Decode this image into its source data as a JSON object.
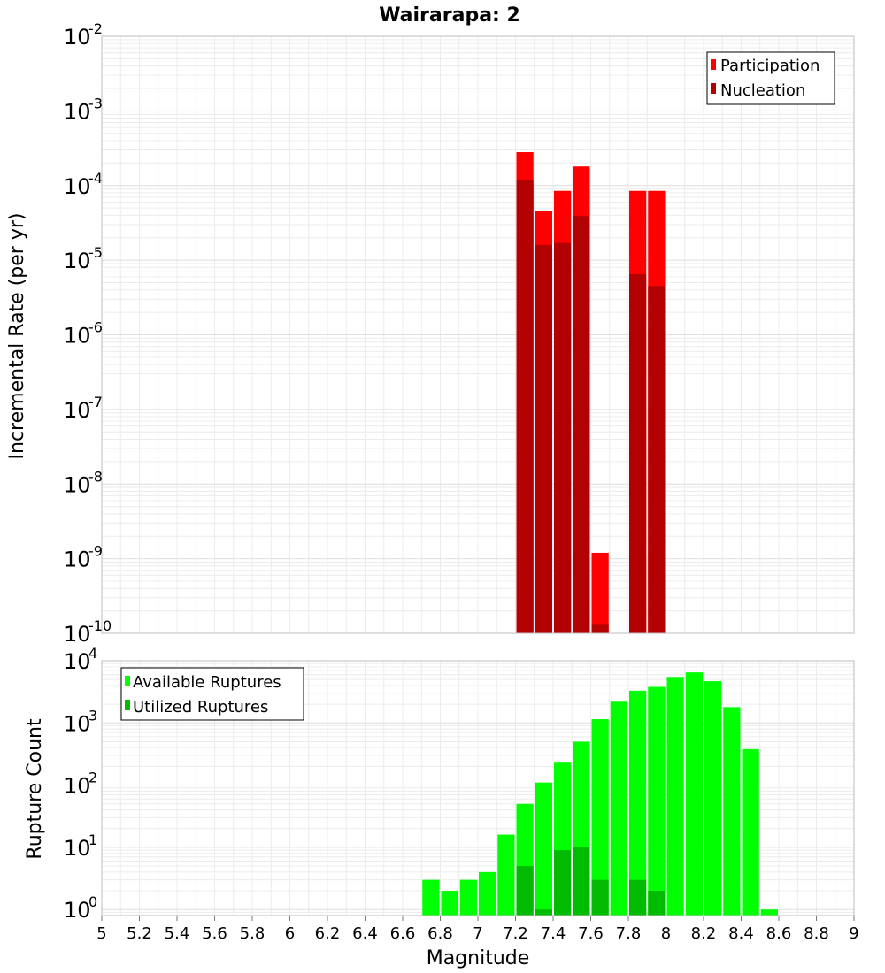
{
  "chart_data": [
    {
      "type": "bar",
      "title": "Wairarapa: 2",
      "xlabel": "Magnitude",
      "ylabel": "Incremental Rate (per yr)",
      "xlim": [
        5,
        9
      ],
      "ylim": [
        1e-10,
        0.01
      ],
      "yscale": "log",
      "bin_width": 0.1,
      "grid": true,
      "legend_position": "top-right",
      "series": [
        {
          "name": "Participation",
          "color": "#ff0000",
          "x": [
            7.25,
            7.35,
            7.45,
            7.55,
            7.65,
            7.85,
            7.95
          ],
          "values": [
            0.00028,
            4.5e-05,
            8.5e-05,
            0.00018,
            1.2e-09,
            8.5e-05,
            8.5e-05
          ]
        },
        {
          "name": "Nucleation",
          "color": "#b30000",
          "x": [
            7.25,
            7.35,
            7.45,
            7.55,
            7.65,
            7.85,
            7.95
          ],
          "values": [
            0.00012,
            1.6e-05,
            1.7e-05,
            3.9e-05,
            1.3e-10,
            6.5e-06,
            4.5e-06
          ]
        }
      ],
      "y_ticks": [
        {
          "base": "10",
          "exp": "-2",
          "value": 0.01
        },
        {
          "base": "10",
          "exp": "-3",
          "value": 0.001
        },
        {
          "base": "10",
          "exp": "-4",
          "value": 0.0001
        },
        {
          "base": "10",
          "exp": "-5",
          "value": 1e-05
        },
        {
          "base": "10",
          "exp": "-6",
          "value": 1e-06
        },
        {
          "base": "10",
          "exp": "-7",
          "value": 1e-07
        },
        {
          "base": "10",
          "exp": "-8",
          "value": 1e-08
        },
        {
          "base": "10",
          "exp": "-9",
          "value": 1e-09
        },
        {
          "base": "10",
          "exp": "-10",
          "value": 1e-10
        }
      ]
    },
    {
      "type": "bar",
      "title": "",
      "xlabel": "Magnitude",
      "ylabel": "Rupture Count",
      "xlim": [
        5,
        9
      ],
      "ylim": [
        0.8,
        10000.0
      ],
      "yscale": "log",
      "bin_width": 0.1,
      "grid": true,
      "legend_position": "top-left",
      "series": [
        {
          "name": "Available Ruptures",
          "color": "#00ff00",
          "x": [
            6.75,
            6.85,
            6.95,
            7.05,
            7.15,
            7.25,
            7.35,
            7.45,
            7.55,
            7.65,
            7.75,
            7.85,
            7.95,
            8.05,
            8.15,
            8.25,
            8.35,
            8.45,
            8.55
          ],
          "values": [
            3,
            2,
            3,
            4,
            16,
            50,
            110,
            230,
            500,
            1150,
            2200,
            3300,
            3800,
            5500,
            6500,
            4700,
            1800,
            380,
            1
          ]
        },
        {
          "name": "Utilized Ruptures",
          "color": "#00bb00",
          "x": [
            7.25,
            7.35,
            7.45,
            7.55,
            7.65,
            7.85,
            7.95
          ],
          "values": [
            5,
            1,
            9,
            10,
            3,
            3,
            2
          ]
        }
      ],
      "y_ticks": [
        {
          "base": "10",
          "exp": "4",
          "value": 10000.0
        },
        {
          "base": "10",
          "exp": "3",
          "value": 1000.0
        },
        {
          "base": "10",
          "exp": "2",
          "value": 100.0
        },
        {
          "base": "10",
          "exp": "1",
          "value": 10
        },
        {
          "base": "10",
          "exp": "0",
          "value": 1
        }
      ]
    }
  ],
  "x_ticks": [
    "5",
    "5.2",
    "5.4",
    "5.6",
    "5.8",
    "6",
    "6.2",
    "6.4",
    "6.6",
    "6.8",
    "7",
    "7.2",
    "7.4",
    "7.6",
    "7.8",
    "8",
    "8.2",
    "8.4",
    "8.6",
    "8.8",
    "9"
  ]
}
